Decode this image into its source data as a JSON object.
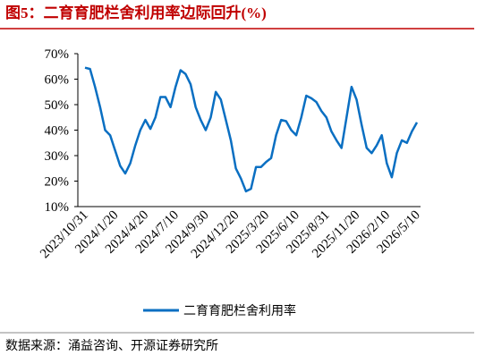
{
  "chart_data": {
    "type": "line",
    "title": "图5：二育育肥栏舍利用率边际回升(%)",
    "source": "数据来源：涌益咨询、开源证券研究所",
    "categories": [
      "2023/10/31",
      null,
      null,
      null,
      null,
      null,
      "2024/1/20",
      null,
      null,
      null,
      null,
      null,
      "2024/4/20",
      null,
      null,
      null,
      null,
      null,
      "2024/7/10",
      null,
      null,
      null,
      null,
      null,
      "2024/9/30",
      null,
      null,
      null,
      null,
      null,
      "2024/12/20",
      null,
      null,
      null,
      null,
      null,
      "2025/3/20",
      null,
      null,
      null,
      null,
      null,
      "2025/6/10",
      null,
      null,
      null,
      null,
      null,
      "2025/8/31",
      null,
      null,
      null,
      null,
      null,
      "2025/11/20",
      null,
      null,
      null,
      null,
      null,
      "2026/2/10",
      null,
      null,
      null,
      null,
      null,
      "2026/5/10"
    ],
    "series": [
      {
        "name": "二育育肥栏舍利用率",
        "color": "#0a6fc2",
        "values": [
          64.5,
          64,
          57,
          49,
          40,
          38,
          32,
          26,
          23,
          27,
          34,
          40,
          44,
          40.5,
          45,
          53,
          53,
          49,
          57,
          63.5,
          62,
          58,
          49,
          44,
          40,
          45,
          55,
          52,
          44,
          36,
          25,
          21,
          16,
          17,
          25.5,
          25.5,
          27.5,
          29,
          38,
          44,
          43.5,
          40,
          38,
          45,
          53.5,
          52.5,
          51,
          47.5,
          45,
          39.5,
          36,
          33,
          45,
          57,
          52,
          42,
          33,
          31,
          34,
          38,
          27,
          21.5,
          31,
          36,
          35,
          39.5,
          43
        ]
      }
    ],
    "ylim": [
      10,
      70
    ],
    "yticks": [
      {
        "value": 10,
        "label": "10%"
      },
      {
        "value": 20,
        "label": "20%"
      },
      {
        "value": 30,
        "label": "30%"
      },
      {
        "value": 40,
        "label": "40%"
      },
      {
        "value": 50,
        "label": "50%"
      },
      {
        "value": 60,
        "label": "60%"
      },
      {
        "value": 70,
        "label": "70%"
      }
    ],
    "legend": "bottom"
  }
}
